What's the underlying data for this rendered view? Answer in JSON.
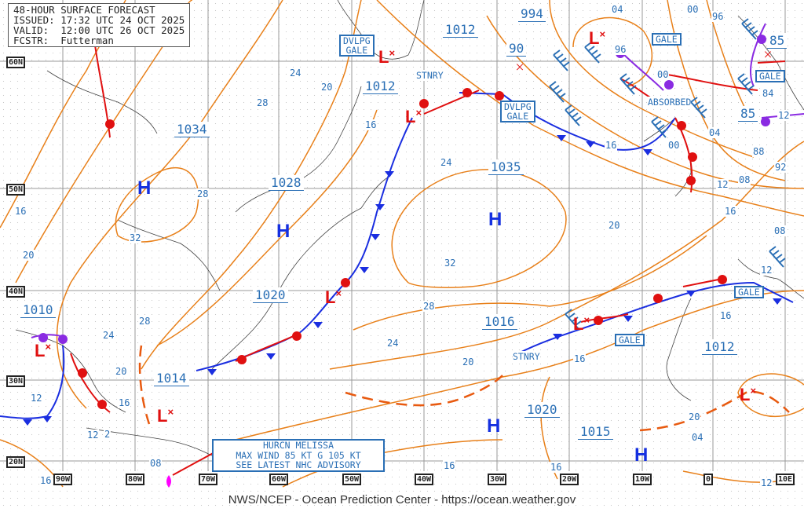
{
  "header": {
    "title": "48-HOUR SURFACE FORECAST",
    "issued": "ISSUED: 17:32 UTC 24 OCT 2025",
    "valid": "VALID:  12:00 UTC 26 OCT 2025",
    "forecaster": "FCSTR:  Futterman"
  },
  "footer": "NWS/NCEP - Ocean Prediction Center - https://ocean.weather.gov",
  "hurricane_box": {
    "line1": "HURCN MELISSA",
    "line2": "MAX WIND 85 KT G 105 KT",
    "line3": "SEE LATEST NHC ADVISORY"
  },
  "longitude_labels": [
    "90W",
    "80W",
    "70W",
    "60W",
    "50W",
    "40W",
    "30W",
    "20W",
    "10W",
    "0",
    "10E"
  ],
  "latitude_labels": [
    "60N",
    "50N",
    "40N",
    "30N",
    "20N"
  ],
  "highs": [
    "H",
    "H",
    "H",
    "H",
    "H"
  ],
  "lows": [
    "L",
    "L",
    "L",
    "L",
    "L",
    "L",
    "L",
    "L"
  ],
  "central_pressures": [
    "1034",
    "1028",
    "1035",
    "1020",
    "1015",
    "1012",
    "1020",
    "1016",
    "1014",
    "1010",
    "1012",
    "1012",
    "994",
    "90",
    "85",
    "85"
  ],
  "annotations": {
    "dvlpg_gale_1": "DVLPG\nGALE",
    "dvlpg_gale_2": "DVLPG\nGALE",
    "gale": [
      "GALE",
      "GALE",
      "GALE",
      "GALE"
    ],
    "stnry": [
      "STNRY",
      "STNRY"
    ],
    "absorbed": "ABSORBED"
  },
  "isobar_labels": [
    "24",
    "20",
    "28",
    "16",
    "16",
    "28",
    "32",
    "20",
    "24",
    "28",
    "20",
    "12",
    "2",
    "12",
    "08",
    "16",
    "24",
    "32",
    "28",
    "24",
    "20",
    "16",
    "04",
    "00",
    "96",
    "96",
    "00",
    "04",
    "12",
    "08",
    "16",
    "08",
    "12",
    "16",
    "16",
    "20",
    "16",
    "12",
    "84",
    "88",
    "92",
    "00",
    "04",
    "16",
    "16",
    "12",
    "20"
  ],
  "colors": {
    "isobar": "#e8801a",
    "cold_front": "#1a2ee0",
    "warm_front": "#e01010",
    "occluded": "#8a2be2",
    "text": "#2a6fb5",
    "hurricane": "#ff00ff"
  }
}
